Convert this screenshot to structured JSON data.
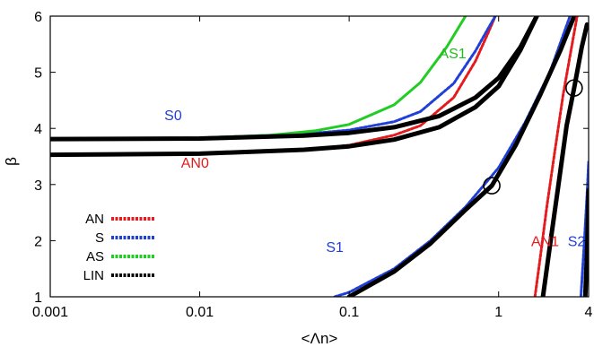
{
  "chart_data": {
    "type": "line",
    "title": "",
    "xlabel": "<Λn>",
    "ylabel": "β",
    "x_scale": "log",
    "xlim": [
      0.001,
      4
    ],
    "ylim": [
      1,
      6
    ],
    "x_ticks": [
      0.001,
      0.01,
      0.1,
      1,
      4
    ],
    "x_tick_labels": [
      "0.001",
      "0.01",
      "0.1",
      "1",
      "4"
    ],
    "y_ticks": [
      1,
      2,
      3,
      4,
      5,
      6
    ],
    "y_tick_labels": [
      "1",
      "2",
      "3",
      "4",
      "5",
      "6"
    ],
    "grid": false,
    "legend_position": "bottom-left",
    "legend": [
      {
        "label": "AN",
        "color": "#e41a1c",
        "style": "dotted"
      },
      {
        "label": "S",
        "color": "#1f3fd6",
        "style": "dotted"
      },
      {
        "label": "AS",
        "color": "#22cc22",
        "style": "dotted"
      },
      {
        "label": "LIN",
        "color": "#000000",
        "style": "dotted"
      }
    ],
    "series": [
      {
        "name": "AN",
        "color": "#e41a1c",
        "width": 3,
        "dash": "3,2",
        "points": [
          [
            0.001,
            3.53
          ],
          [
            0.01,
            3.55
          ],
          [
            0.05,
            3.62
          ],
          [
            0.1,
            3.7
          ],
          [
            0.2,
            3.88
          ],
          [
            0.3,
            4.05
          ],
          [
            0.5,
            4.55
          ],
          [
            0.7,
            5.2
          ],
          [
            0.85,
            5.7
          ],
          [
            0.95,
            6.0
          ]
        ]
      },
      {
        "name": "S",
        "color": "#1f3fd6",
        "width": 3,
        "dash": "3,2",
        "points": [
          [
            0.001,
            3.81
          ],
          [
            0.01,
            3.83
          ],
          [
            0.05,
            3.9
          ],
          [
            0.1,
            3.97
          ],
          [
            0.2,
            4.12
          ],
          [
            0.3,
            4.3
          ],
          [
            0.5,
            4.8
          ],
          [
            0.7,
            5.38
          ],
          [
            0.85,
            5.78
          ],
          [
            0.95,
            6.0
          ]
        ]
      },
      {
        "name": "AS",
        "color": "#22cc22",
        "width": 3,
        "points": [
          [
            0.001,
            3.81
          ],
          [
            0.01,
            3.83
          ],
          [
            0.03,
            3.88
          ],
          [
            0.06,
            3.96
          ],
          [
            0.1,
            4.07
          ],
          [
            0.2,
            4.42
          ],
          [
            0.3,
            4.82
          ],
          [
            0.45,
            5.45
          ],
          [
            0.6,
            6.0
          ]
        ]
      },
      {
        "name": "LIN",
        "color": "#000000",
        "width": 5,
        "points": [
          [
            0.001,
            3.53
          ],
          [
            0.01,
            3.55
          ],
          [
            0.05,
            3.62
          ],
          [
            0.1,
            3.68
          ],
          [
            0.2,
            3.8
          ],
          [
            0.4,
            4.02
          ],
          [
            0.7,
            4.38
          ],
          [
            1.0,
            4.75
          ],
          [
            1.4,
            5.4
          ],
          [
            1.8,
            6.0
          ]
        ]
      },
      {
        "name": "LIN",
        "color": "#000000",
        "width": 5,
        "points": [
          [
            0.001,
            3.81
          ],
          [
            0.01,
            3.82
          ],
          [
            0.05,
            3.87
          ],
          [
            0.1,
            3.92
          ],
          [
            0.2,
            4.02
          ],
          [
            0.4,
            4.22
          ],
          [
            0.7,
            4.55
          ],
          [
            1.0,
            4.9
          ],
          [
            1.4,
            5.45
          ],
          [
            1.8,
            6.0
          ]
        ]
      },
      {
        "name": "S",
        "color": "#1f3fd6",
        "width": 3,
        "dash": "3,2",
        "points": [
          [
            0.08,
            1.0
          ],
          [
            0.1,
            1.08
          ],
          [
            0.2,
            1.5
          ],
          [
            0.35,
            2.0
          ],
          [
            0.6,
            2.6
          ],
          [
            1.0,
            3.3
          ],
          [
            1.5,
            4.1
          ],
          [
            2.2,
            5.0
          ],
          [
            3.0,
            6.0
          ]
        ]
      },
      {
        "name": "LIN",
        "color": "#000000",
        "width": 5,
        "points": [
          [
            0.1,
            1.0
          ],
          [
            0.2,
            1.45
          ],
          [
            0.35,
            1.95
          ],
          [
            0.6,
            2.55
          ],
          [
            0.9,
            2.98
          ],
          [
            1.3,
            3.7
          ],
          [
            1.9,
            4.6
          ],
          [
            2.6,
            5.4
          ],
          [
            3.2,
            6.0
          ]
        ]
      },
      {
        "name": "AN",
        "color": "#e41a1c",
        "width": 3,
        "dash": "3,2",
        "points": [
          [
            1.75,
            1.0
          ],
          [
            1.9,
            1.7
          ],
          [
            2.1,
            2.6
          ],
          [
            2.35,
            3.5
          ],
          [
            2.7,
            4.6
          ],
          [
            3.1,
            5.5
          ],
          [
            3.35,
            6.0
          ]
        ]
      },
      {
        "name": "LIN",
        "color": "#000000",
        "width": 5,
        "points": [
          [
            1.98,
            1.0
          ],
          [
            2.2,
            1.9
          ],
          [
            2.5,
            2.95
          ],
          [
            2.85,
            4.05
          ],
          [
            3.2,
            4.72
          ],
          [
            3.6,
            5.45
          ],
          [
            3.9,
            5.85
          ]
        ]
      },
      {
        "name": "S",
        "color": "#1f3fd6",
        "width": 3,
        "dash": "3,2",
        "points": [
          [
            3.55,
            1.0
          ],
          [
            3.75,
            2.0
          ],
          [
            3.92,
            2.9
          ],
          [
            4.0,
            3.4
          ]
        ]
      },
      {
        "name": "LIN",
        "color": "#000000",
        "width": 5,
        "points": [
          [
            3.8,
            1.0
          ],
          [
            3.93,
            2.0
          ],
          [
            4.0,
            2.9
          ]
        ]
      }
    ],
    "annotations": [
      {
        "text": "AS1",
        "color": "#22bb22",
        "x": 0.4,
        "y": 5.25
      },
      {
        "text": "S0",
        "color": "#1f3fd6",
        "x": 0.0058,
        "y": 4.15
      },
      {
        "text": "AN0",
        "color": "#e41a1c",
        "x": 0.0075,
        "y": 3.3
      },
      {
        "text": "S1",
        "color": "#1f3fd6",
        "x": 0.07,
        "y": 1.8
      },
      {
        "text": "AN1",
        "color": "#e41a1c",
        "x": 1.65,
        "y": 1.9
      },
      {
        "text": "S2",
        "color": "#1f3fd6",
        "x": 2.9,
        "y": 1.9
      }
    ],
    "markers": [
      {
        "shape": "open-circle",
        "x": 0.9,
        "y": 2.98
      },
      {
        "shape": "open-circle",
        "x": 3.2,
        "y": 4.72
      }
    ]
  }
}
